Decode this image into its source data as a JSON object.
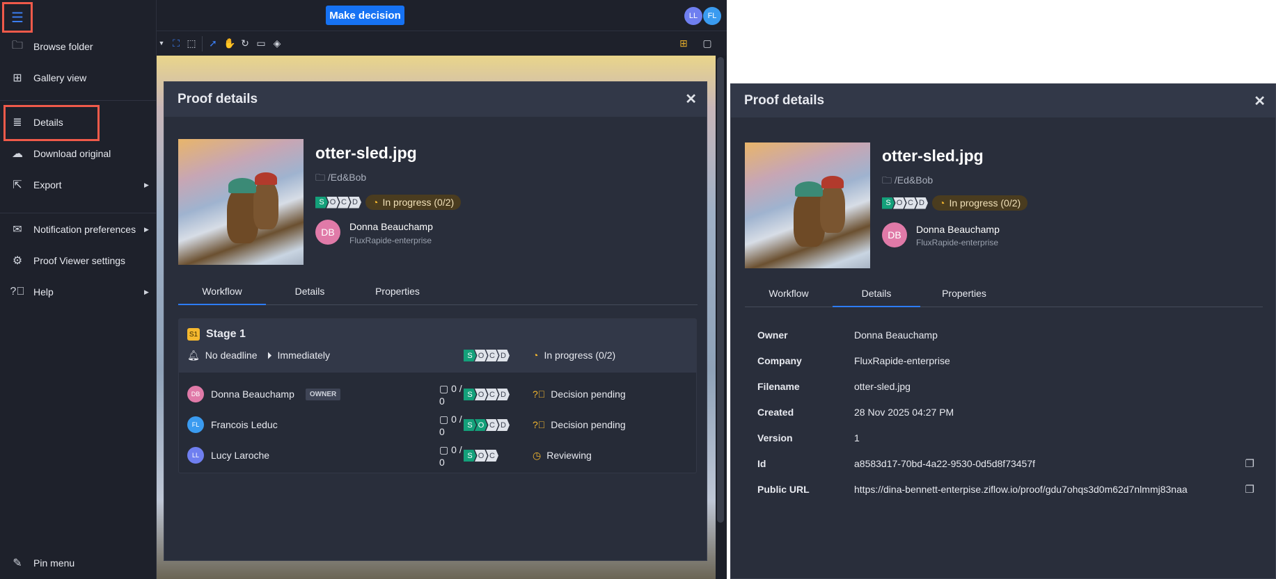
{
  "topbar": {
    "make_decision": "Make decision",
    "avatars": [
      {
        "initials": "LL",
        "color": "#6f7ff0"
      },
      {
        "initials": "FL",
        "color": "#3a9bf0"
      }
    ]
  },
  "toolbar": {
    "icons": [
      "dropdown-caret",
      "fit-icon",
      "zoom-region-icon",
      "pointer-icon",
      "hand-icon",
      "rotate-icon",
      "ruler-icon",
      "fill-icon",
      "add-comment-icon",
      "comment-icon"
    ]
  },
  "sidebar": {
    "items": [
      {
        "label": "Browse folder",
        "icon": "folder-icon"
      },
      {
        "label": "Gallery view",
        "icon": "grid-icon"
      },
      {
        "label": "Details",
        "icon": "details-icon"
      },
      {
        "label": "Download original",
        "icon": "cloud-download-icon"
      },
      {
        "label": "Export",
        "icon": "export-icon",
        "submenu": true
      },
      {
        "label": "Notification preferences",
        "icon": "mail-icon",
        "submenu": true
      },
      {
        "label": "Proof Viewer settings",
        "icon": "gear-icon"
      },
      {
        "label": "Help",
        "icon": "help-icon",
        "submenu": true
      }
    ],
    "pin": "Pin menu"
  },
  "proof": {
    "panel_title": "Proof details",
    "filename": "otter-sled.jpg",
    "folder": "/Ed&Bob",
    "socd": [
      "S",
      "O",
      "C",
      "D"
    ],
    "status": "In progress (0/2)",
    "owner": {
      "initials": "DB",
      "name": "Donna Beauchamp",
      "company": "FluxRapide-enterprise",
      "color": "#e07aa8"
    },
    "tabs": [
      "Workflow",
      "Details",
      "Properties"
    ]
  },
  "workflow": {
    "stage_badge": "S1",
    "stage_name": "Stage 1",
    "deadline": "No deadline",
    "start": "Immediately",
    "status": "In progress (0/2)",
    "reviewers": [
      {
        "initials": "DB",
        "name": "Donna Beauchamp",
        "badge": "OWNER",
        "comments_top": "0 /",
        "comments_bottom": "0",
        "socd_done": 1,
        "socd_count": 4,
        "status": "Decision pending",
        "color": "#e07aa8"
      },
      {
        "initials": "FL",
        "name": "Francois Leduc",
        "badge": "",
        "comments_top": "0 /",
        "comments_bottom": "0",
        "socd_done": 2,
        "socd_count": 4,
        "status": "Decision pending",
        "color": "#3a9bf0"
      },
      {
        "initials": "LL",
        "name": "Lucy Laroche",
        "badge": "",
        "comments_top": "0 /",
        "comments_bottom": "0",
        "socd_done": 1,
        "socd_count": 3,
        "status": "Reviewing",
        "color": "#6f7ff0"
      }
    ]
  },
  "details": {
    "rows": [
      {
        "label": "Owner",
        "value": "Donna Beauchamp"
      },
      {
        "label": "Company",
        "value": "FluxRapide-enterprise"
      },
      {
        "label": "Filename",
        "value": "otter-sled.jpg"
      },
      {
        "label": "Created",
        "value": "28 Nov 2025 04:27 PM"
      },
      {
        "label": "Version",
        "value": "1"
      },
      {
        "label": "Id",
        "value": "a8583d17-70bd-4a22-9530-0d5d8f73457f",
        "copy": true
      },
      {
        "label": "Public URL",
        "value": "https://dina-bennett-enterpise.ziflow.io/proof/gdu7ohqs3d0m62d7nlmmj83naa",
        "copy": true
      }
    ]
  },
  "colors": {
    "accent": "#1672f3",
    "highlight": "#f05a4a",
    "socd_on": "#14a07a",
    "status": "#f5b82e"
  }
}
